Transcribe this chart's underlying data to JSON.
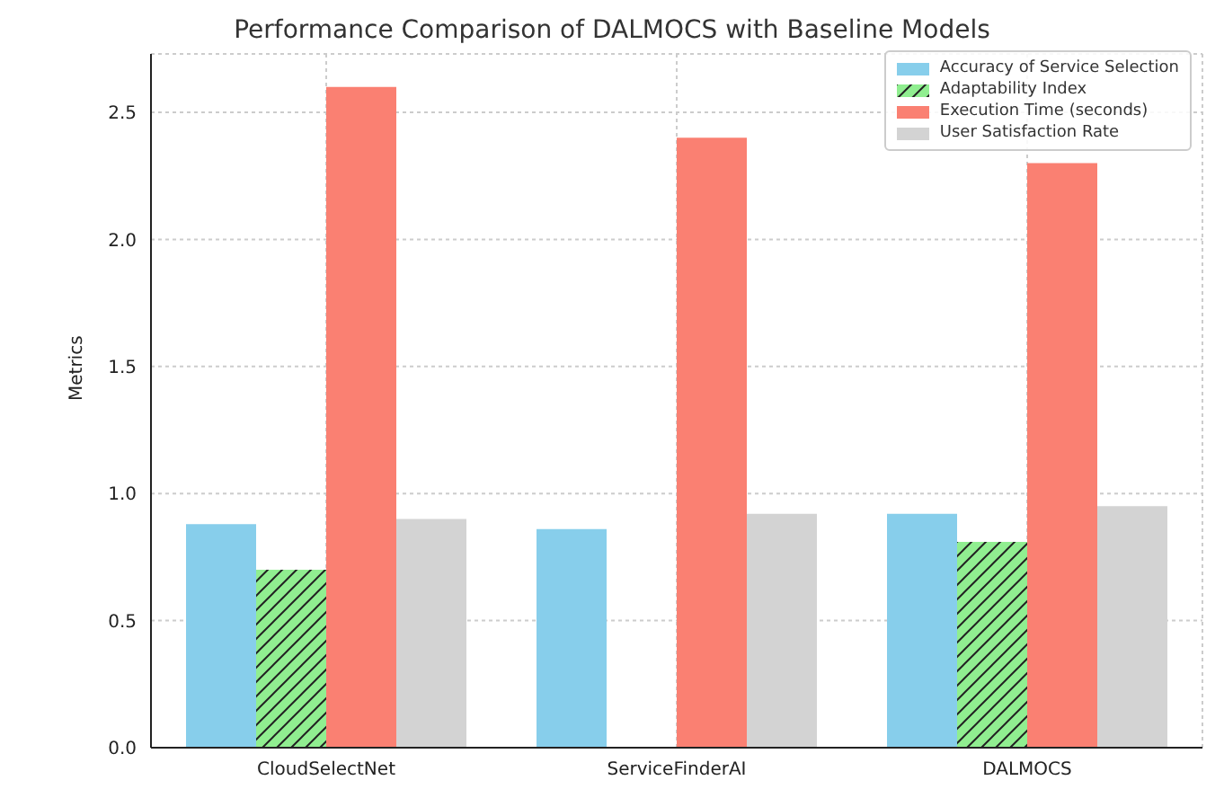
{
  "chart_data": {
    "type": "bar",
    "title": "Performance Comparison of DALMOCS with Baseline Models",
    "ylabel": "Metrics",
    "categories": [
      "CloudSelectNet",
      "ServiceFinderAI",
      "DALMOCS"
    ],
    "series": [
      {
        "name": "Accuracy of Service Selection",
        "color": "#87ceeb",
        "values": [
          0.88,
          0.86,
          0.92
        ]
      },
      {
        "name": "Adaptability Index",
        "color": "#90ee90",
        "values": [
          0.7,
          null,
          0.81
        ]
      },
      {
        "name": "Execution Time (seconds)",
        "color": "#fa8072",
        "values": [
          2.6,
          2.4,
          2.3
        ]
      },
      {
        "name": "User Satisfaction Rate",
        "color": "#d3d3d3",
        "values": [
          0.9,
          0.92,
          0.95
        ]
      }
    ],
    "ylim": [
      0,
      2.73
    ],
    "yticks": [
      {
        "value": 0,
        "label": "0.0"
      },
      0.5,
      {
        "value": 1,
        "label": "1.0"
      },
      1.5,
      {
        "value": 2,
        "label": "2.0"
      },
      2.5
    ],
    "grid": true,
    "legend": "top right"
  }
}
